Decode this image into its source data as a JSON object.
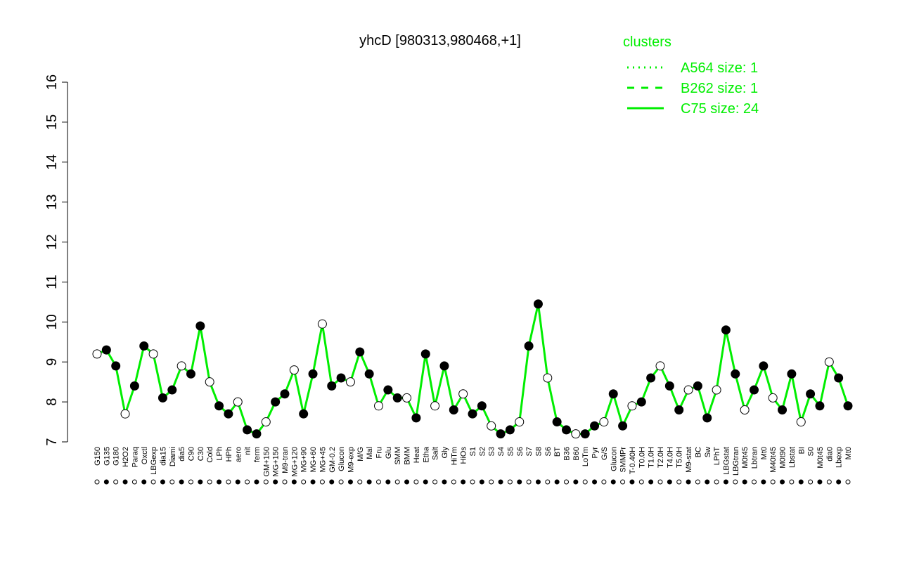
{
  "chart_data": {
    "type": "line",
    "title": "yhcD [980313,980468,+1]",
    "legend_title": "clusters",
    "legend_position": "top-right",
    "legend": [
      {
        "name": "A564 size: 1",
        "dash": "dotted"
      },
      {
        "name": "B262 size: 1",
        "dash": "dashed"
      },
      {
        "name": "C75 size: 24",
        "dash": "solid"
      }
    ],
    "color": "#00ee00",
    "ylim": [
      7,
      16
    ],
    "yticks": [
      7,
      8,
      9,
      10,
      11,
      12,
      13,
      14,
      15,
      16
    ],
    "categories": [
      "G150",
      "G135",
      "G180",
      "H2O2",
      "Paraq",
      "Oxctl",
      "LBGexp",
      "dia15",
      "Diami",
      "dia5",
      "C90",
      "C30",
      "Cold",
      "LPh",
      "HPh",
      "aero",
      "nit",
      "ferm",
      "GM+150",
      "MG+150",
      "M9-tran",
      "MG+120",
      "MG+90",
      "MG+60",
      "MG+45",
      "GM-0.2",
      "Glucon",
      "M9-exp",
      "M/G",
      "Mal",
      "Fru",
      "Glu",
      "SMM",
      "BMM",
      "Heat",
      "Etha",
      "Salt",
      "Gly",
      "HiTm",
      "HiOs",
      "S1",
      "S2",
      "S3",
      "S4",
      "S5",
      "S6",
      "S7",
      "S8",
      "S6",
      "BT",
      "B36",
      "B60",
      "LoTm",
      "Pyr",
      "G/S",
      "Glucon",
      "SMMPr",
      "T-0.40H",
      "T0.0H",
      "T1.0H",
      "T2.0H",
      "T4.0H",
      "T5.0H",
      "M9-stat",
      "BC",
      "Sw",
      "LPhT",
      "LBGstat",
      "LBGtran",
      "M0t45",
      "Lbtran",
      "Mt0",
      "M40t45",
      "M0t90",
      "Lbstat",
      "BI",
      "S0",
      "M0t45",
      "dia0",
      "Lbexp",
      "Mt0"
    ],
    "values": [
      9.2,
      9.3,
      8.9,
      7.7,
      8.4,
      9.4,
      9.2,
      8.1,
      8.3,
      8.9,
      8.7,
      9.9,
      8.5,
      7.9,
      7.7,
      8.0,
      7.3,
      7.2,
      7.5,
      8.0,
      8.2,
      8.8,
      7.7,
      8.7,
      9.95,
      8.4,
      8.6,
      8.5,
      9.25,
      8.7,
      7.9,
      8.3,
      8.1,
      8.1,
      7.6,
      9.2,
      7.9,
      8.9,
      7.8,
      8.2,
      7.7,
      7.9,
      7.4,
      7.2,
      7.3,
      7.5,
      9.4,
      10.45,
      8.6,
      7.5,
      7.3,
      7.2,
      7.2,
      7.4,
      7.5,
      8.2,
      7.4,
      7.9,
      8.0,
      8.6,
      8.9,
      8.4,
      7.8,
      8.3,
      8.4,
      7.6,
      8.3,
      9.8,
      8.7,
      7.8,
      8.3,
      8.9,
      8.1,
      7.8,
      8.7,
      7.5,
      8.2,
      7.9,
      9.0,
      8.6,
      7.9
    ]
  }
}
